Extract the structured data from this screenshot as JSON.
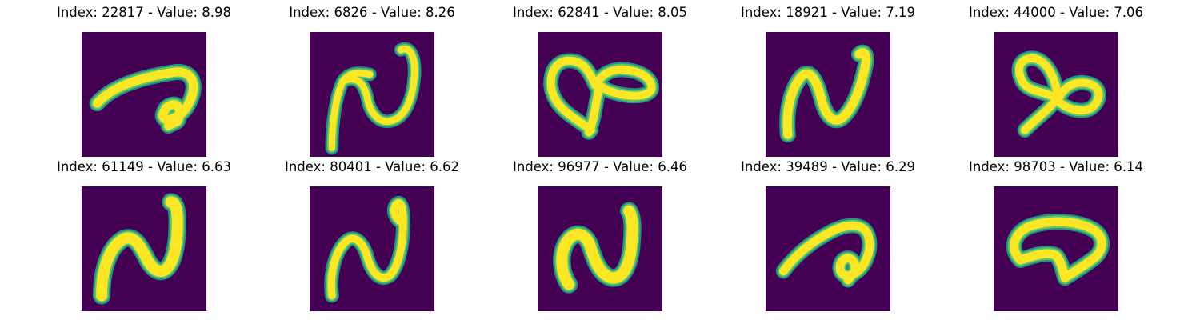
{
  "colors": {
    "background": "#440154",
    "stroke_core": "#fde725",
    "stroke_mid": "#5ec962",
    "stroke_edge": "#21918c"
  },
  "panels": [
    {
      "index": "22817",
      "value": "8.98",
      "title": "Index: 22817 - Value: 8.98"
    },
    {
      "index": "6826",
      "value": "8.26",
      "title": "Index: 6826 - Value: 8.26"
    },
    {
      "index": "62841",
      "value": "8.05",
      "title": "Index: 62841 - Value: 8.05"
    },
    {
      "index": "18921",
      "value": "7.19",
      "title": "Index: 18921 - Value: 7.19"
    },
    {
      "index": "44000",
      "value": "7.06",
      "title": "Index: 44000 - Value: 7.06"
    },
    {
      "index": "61149",
      "value": "6.63",
      "title": "Index: 61149 - Value: 6.63"
    },
    {
      "index": "80401",
      "value": "6.62",
      "title": "Index: 80401 - Value: 6.62"
    },
    {
      "index": "96977",
      "value": "6.46",
      "title": "Index: 96977 - Value: 6.46"
    },
    {
      "index": "39489",
      "value": "6.29",
      "title": "Index: 39489 - Value: 6.29"
    },
    {
      "index": "98703",
      "value": "6.14",
      "title": "Index: 98703 - Value: 6.14"
    }
  ]
}
